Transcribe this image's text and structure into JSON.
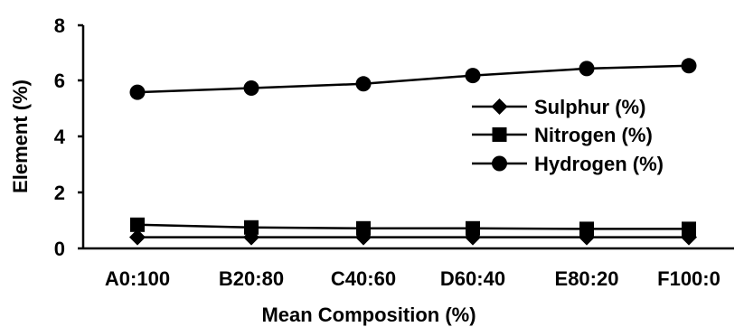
{
  "chart_data": {
    "type": "line",
    "title": "",
    "xlabel": "Mean Composition (%)",
    "ylabel": "Element (%)",
    "categories": [
      "A0:100",
      "B20:80",
      "C40:60",
      "D60:40",
      "E80:20",
      "F100:0"
    ],
    "ylim": [
      0,
      8
    ],
    "yticks": [
      "0",
      "2",
      "4",
      "6",
      "8"
    ],
    "grid": false,
    "legend_position": "right",
    "series": [
      {
        "name": "Sulphur (%)",
        "marker": "diamond",
        "color": "#000000",
        "values": [
          0.4,
          0.4,
          0.4,
          0.4,
          0.4,
          0.4
        ]
      },
      {
        "name": "Nitrogen (%)",
        "marker": "square",
        "color": "#000000",
        "values": [
          0.85,
          0.75,
          0.72,
          0.72,
          0.7,
          0.7
        ]
      },
      {
        "name": "Hydrogen (%)",
        "marker": "circle",
        "color": "#000000",
        "values": [
          5.6,
          5.75,
          5.9,
          6.2,
          6.45,
          6.55
        ]
      }
    ]
  }
}
